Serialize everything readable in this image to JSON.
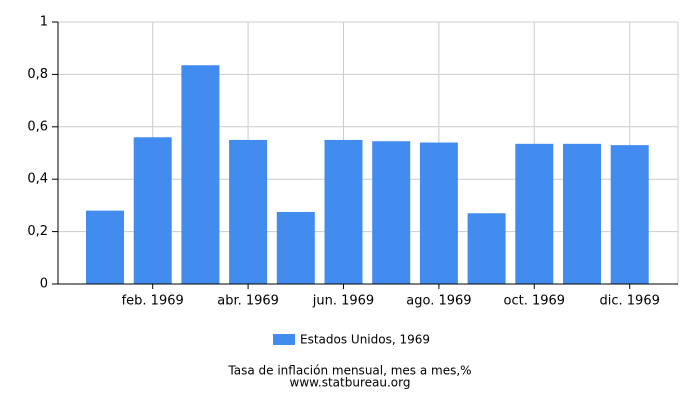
{
  "chart_data": {
    "type": "bar",
    "title": "Tasa de inflación mensual, mes a mes,%",
    "source": "www.statbureau.org",
    "categories": [
      null,
      "feb. 1969",
      null,
      "abr. 1969",
      null,
      "jun. 1969",
      null,
      "ago. 1969",
      null,
      "oct. 1969",
      null,
      "dic. 1969"
    ],
    "series": [
      {
        "name": "Estados Unidos, 1969",
        "color": "#428bef",
        "values": [
          0.28,
          0.56,
          0.835,
          0.55,
          0.275,
          0.55,
          0.545,
          0.54,
          0.27,
          0.535,
          0.535,
          0.53
        ]
      }
    ],
    "ylim": [
      0,
      1
    ],
    "yticks": [
      0,
      {
        "value": 0.2,
        "label": "0,2"
      },
      {
        "value": 0.4,
        "label": "0,4"
      },
      {
        "value": 0.6,
        "label": "0,6"
      },
      {
        "value": 0.8,
        "label": "0,8"
      },
      1
    ],
    "grid": true
  }
}
